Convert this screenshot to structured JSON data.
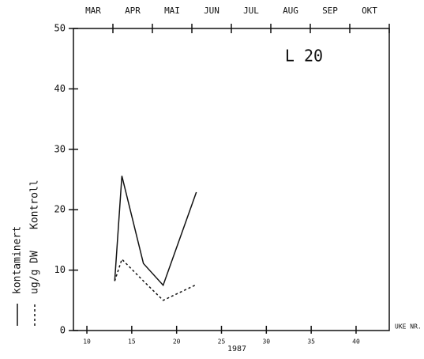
{
  "chart_data": {
    "type": "line",
    "title": "L 20",
    "x_label": "1987",
    "x_unit_label": "UKE NR.",
    "y_label": "ug/g DW",
    "top_axis_labels": [
      "MAR",
      "APR",
      "MAI",
      "JUN",
      "JUL",
      "AUG",
      "SEP",
      "OKT"
    ],
    "xlim": [
      8.5,
      43.7
    ],
    "xticks": [
      10,
      15,
      20,
      25,
      30,
      35,
      40
    ],
    "ylim": [
      0,
      50
    ],
    "yticks": [
      0,
      10,
      20,
      30,
      40,
      50
    ],
    "x": [
      13.1,
      13.9,
      16.3,
      18.5,
      22.2
    ],
    "series": [
      {
        "name": "kontaminert",
        "color": "#111111",
        "dash": "solid",
        "values": [
          8.2,
          25.6,
          11.1,
          7.5,
          22.9
        ]
      },
      {
        "name": "Kontroll",
        "color": "#111111",
        "dash": "dotted",
        "values": [
          8.2,
          11.8,
          8.2,
          5.0,
          7.6
        ]
      }
    ]
  }
}
